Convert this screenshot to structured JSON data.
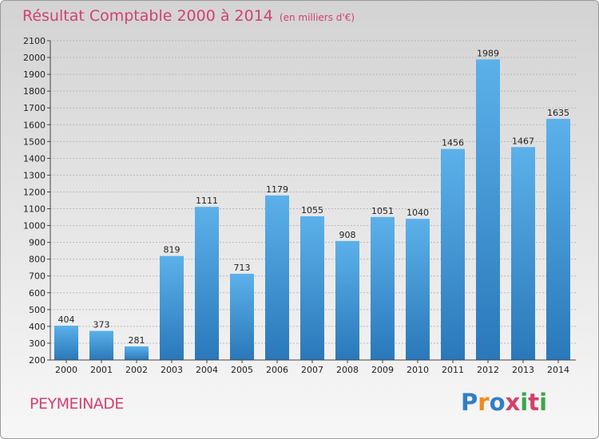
{
  "title": "Résultat Comptable 2000 à 2014",
  "subtitle": "(en milliers d'€)",
  "commune": "PEYMEINADE",
  "logo": {
    "text": "Proxiti",
    "letters": [
      "P",
      "r",
      "o",
      "x",
      "i",
      "t",
      "i"
    ],
    "colors": [
      "#2f7fc8",
      "#f08a1c",
      "#2f7fc8",
      "#d2416e",
      "#3aa84a",
      "#d2416e",
      "#3aa84a"
    ]
  },
  "colors": {
    "title": "#d2416e",
    "bar_light": "#5aaee8",
    "bar_dark": "#2b7bbd"
  },
  "chart_data": {
    "type": "bar",
    "title": "Résultat Comptable 2000 à 2014",
    "subtitle": "(en milliers d'€)",
    "xlabel": "",
    "ylabel": "",
    "categories": [
      "2000",
      "2001",
      "2002",
      "2003",
      "2004",
      "2005",
      "2006",
      "2007",
      "2008",
      "2009",
      "2010",
      "2011",
      "2012",
      "2013",
      "2014"
    ],
    "values": [
      404,
      373,
      281,
      819,
      1111,
      713,
      1179,
      1055,
      908,
      1051,
      1040,
      1456,
      1989,
      1467,
      1635
    ],
    "ylim": [
      200,
      2100
    ],
    "yticks": [
      200,
      300,
      400,
      500,
      600,
      700,
      800,
      900,
      1000,
      1100,
      1200,
      1300,
      1400,
      1500,
      1600,
      1700,
      1800,
      1900,
      2000,
      2100
    ],
    "grid": true,
    "legend": "none"
  }
}
